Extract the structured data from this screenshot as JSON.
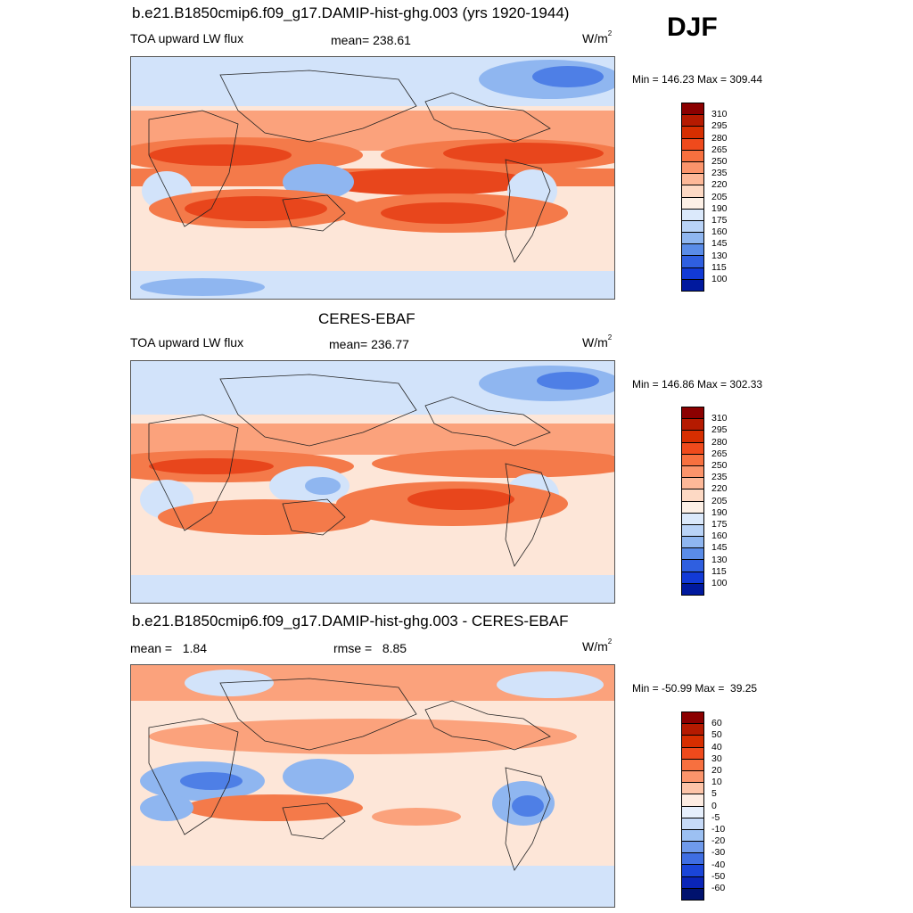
{
  "season": "DJF",
  "panels": [
    {
      "title": "b.e21.B1850cmip6.f09_g17.DAMIP-hist-ghg.003 (yrs 1920-1944)",
      "left_label": "TOA upward LW flux",
      "center_label": "mean= 238.61",
      "unit_base": "W/m",
      "unit_exp": "2",
      "minmax": "Min = 146.23 Max = 309.44",
      "colorbar_labels": [
        "310",
        "295",
        "280",
        "265",
        "250",
        "235",
        "220",
        "205",
        "190",
        "175",
        "160",
        "145",
        "130",
        "115",
        "100"
      ],
      "colorbar_colors": [
        "#8b0000",
        "#b51a00",
        "#d62e00",
        "#ef4a1c",
        "#f7703f",
        "#fb946b",
        "#fdb898",
        "#fdd9c4",
        "#fdf0e6",
        "#dbe9fb",
        "#b9d3f7",
        "#8fb6f0",
        "#5a8ce8",
        "#2f5fe0",
        "#123ad6",
        "#00199e"
      ]
    },
    {
      "title": "CERES-EBAF",
      "left_label": "TOA upward LW flux",
      "center_label": "mean= 236.77",
      "unit_base": "W/m",
      "unit_exp": "2",
      "minmax": "Min = 146.86 Max = 302.33",
      "colorbar_labels": [
        "310",
        "295",
        "280",
        "265",
        "250",
        "235",
        "220",
        "205",
        "190",
        "175",
        "160",
        "145",
        "130",
        "115",
        "100"
      ],
      "colorbar_colors": [
        "#8b0000",
        "#b51a00",
        "#d62e00",
        "#ef4a1c",
        "#f7703f",
        "#fb946b",
        "#fdb898",
        "#fdd9c4",
        "#fdf0e6",
        "#dbe9fb",
        "#b9d3f7",
        "#8fb6f0",
        "#5a8ce8",
        "#2f5fe0",
        "#123ad6",
        "#00199e"
      ]
    },
    {
      "title": "b.e21.B1850cmip6.f09_g17.DAMIP-hist-ghg.003 - CERES-EBAF",
      "left_label": "mean =   1.84",
      "center_label": "rmse =   8.85",
      "unit_base": "W/m",
      "unit_exp": "2",
      "minmax": "Min = -50.99 Max =  39.25",
      "colorbar_labels": [
        "60",
        "50",
        "40",
        "30",
        "20",
        "10",
        "5",
        "0",
        "-5",
        "-10",
        "-20",
        "-30",
        "-40",
        "-50",
        "-60"
      ],
      "colorbar_colors": [
        "#8b0000",
        "#b51a00",
        "#d62e00",
        "#ef4a1c",
        "#f7703f",
        "#fb946b",
        "#fdc4a8",
        "#fdece2",
        "#e6effc",
        "#c6daf8",
        "#9cc0f2",
        "#6f9aeb",
        "#3f6ee2",
        "#1a45d8",
        "#0a25b8",
        "#00126e"
      ]
    }
  ],
  "map_colors": {
    "hot_dark": "#c42a00",
    "hot": "#e8461c",
    "warm": "#f47a4a",
    "mild": "#fba27c",
    "neutral": "#fde6d8",
    "cool": "#d2e3fa",
    "cold": "#8fb6f0",
    "very_cold": "#4e7fe6",
    "deep_cold": "#1d3fd6"
  }
}
